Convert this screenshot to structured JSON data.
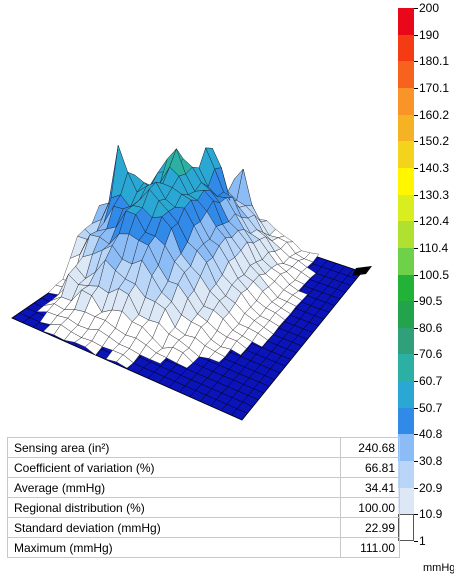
{
  "scale": {
    "labels": [
      "200",
      "190",
      "180.1",
      "170.1",
      "160.2",
      "150.2",
      "140.3",
      "130.3",
      "120.4",
      "110.4",
      "100.5",
      "90.5",
      "80.6",
      "70.6",
      "60.7",
      "50.7",
      "40.8",
      "30.8",
      "20.9",
      "10.9",
      "1"
    ],
    "colors": [
      "#e8081a",
      "#f53b14",
      "#f7621f",
      "#f89428",
      "#f6b225",
      "#f3d31b",
      "#fff600",
      "#d9ee1f",
      "#b0e030",
      "#6fd04a",
      "#22b237",
      "#22a34c",
      "#2fa07a",
      "#2cb0a4",
      "#2aa7d2",
      "#3189e8",
      "#8cbcf5",
      "#b9d5f7",
      "#dde8f6",
      "#ffffff"
    ],
    "unit": "mmHg"
  },
  "stats": [
    {
      "label": "Sensing area (in²)",
      "value": "240.68"
    },
    {
      "label": "Coefficient of variation (%)",
      "value": "66.81"
    },
    {
      "label": "Average (mmHg)",
      "value": "34.41"
    },
    {
      "label": "Regional distribution (%)",
      "value": "100.00"
    },
    {
      "label": "Standard deviation (mmHg)",
      "value": "22.99"
    },
    {
      "label": "Maximum (mmHg)",
      "value": "111.00"
    }
  ]
}
